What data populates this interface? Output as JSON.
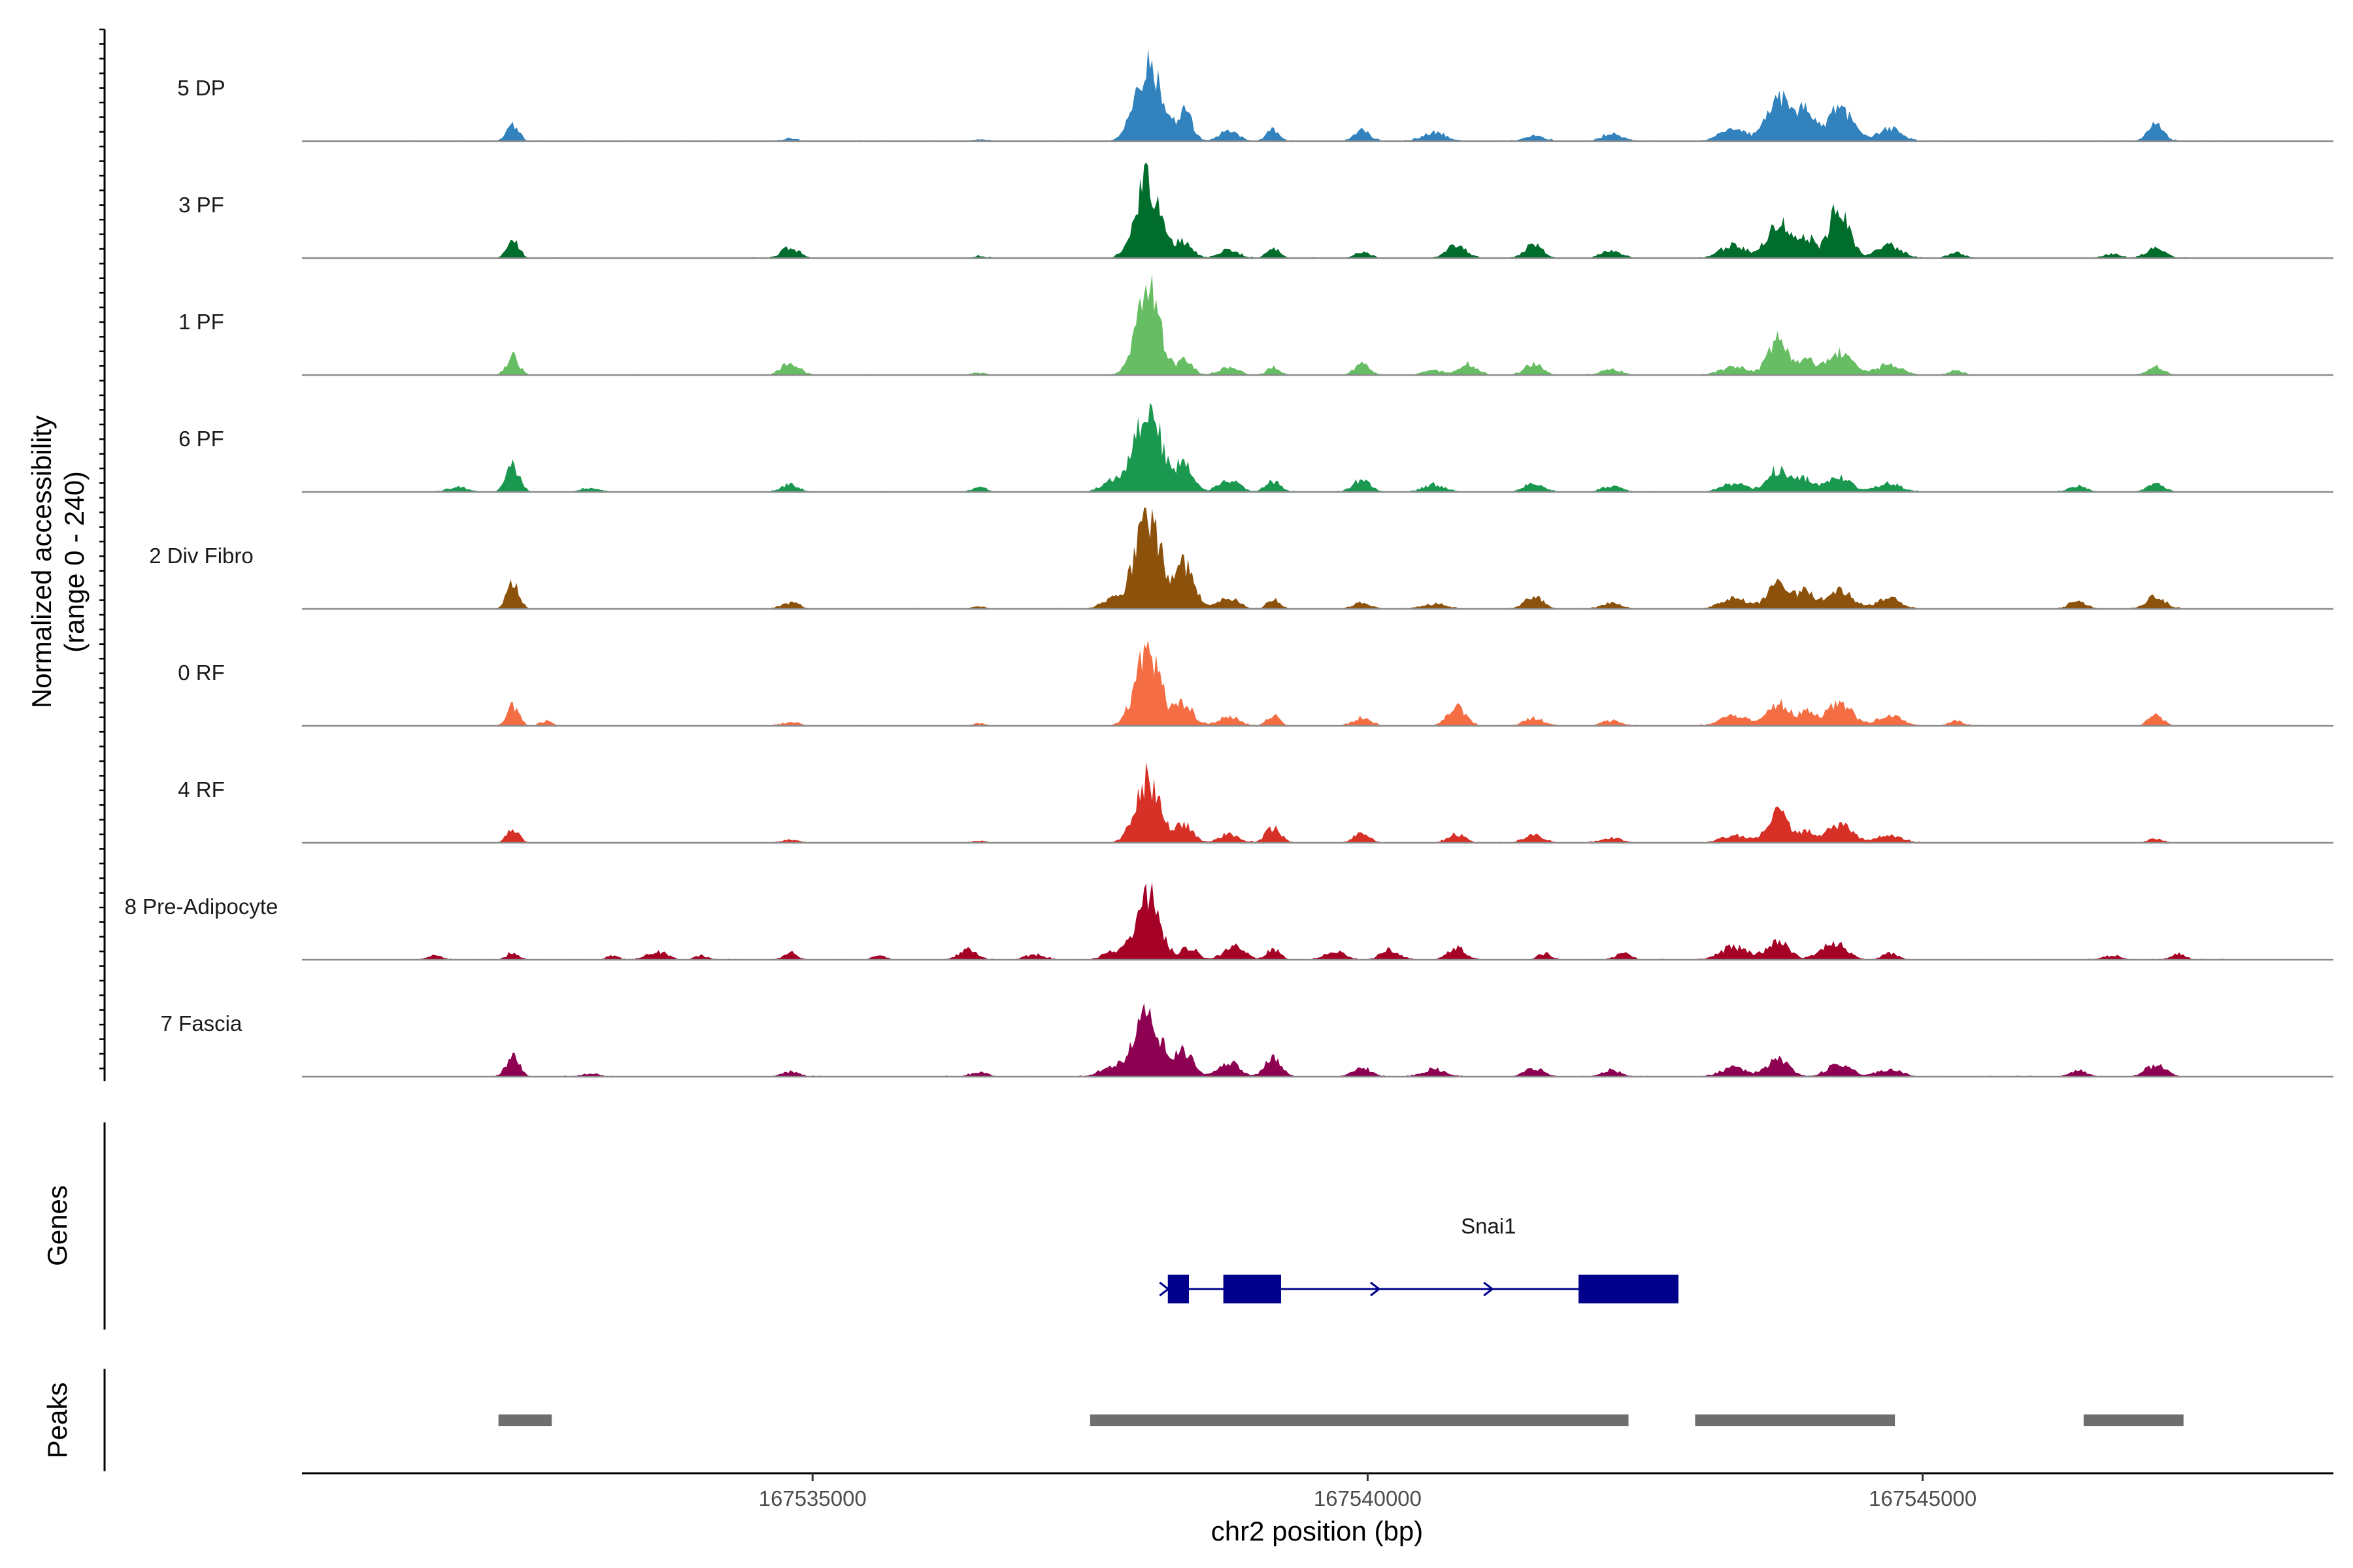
{
  "chart_data": {
    "type": "area",
    "title": "",
    "ylabel": "Normalized accessibility",
    "ylabel_range": "(range 0 - 240)",
    "ylim": [
      0,
      240
    ],
    "xlabel": "chr2 position (bp)",
    "xlim": [
      167530400,
      167548700
    ],
    "x_ticks": [
      167535000,
      167540000,
      167545000
    ],
    "x_tick_labels": [
      "167535000",
      "167540000",
      "167545000"
    ],
    "series": [
      {
        "name": "5 DP",
        "color": "#3182BD",
        "peaks": [
          [
            167532300,
            40,
            55
          ],
          [
            167534800,
            6,
            70
          ],
          [
            167536500,
            4,
            60
          ],
          [
            167538020,
            185,
            110
          ],
          [
            167538350,
            70,
            70
          ],
          [
            167538750,
            22,
            90
          ],
          [
            167539150,
            28,
            55
          ],
          [
            167539950,
            26,
            70
          ],
          [
            167540600,
            20,
            110
          ],
          [
            167541500,
            12,
            90
          ],
          [
            167542200,
            18,
            90
          ],
          [
            167543300,
            30,
            120
          ],
          [
            167543700,
            110,
            95
          ],
          [
            167543950,
            75,
            75
          ],
          [
            167544250,
            80,
            110
          ],
          [
            167544700,
            30,
            110
          ],
          [
            167547100,
            38,
            70
          ]
        ]
      },
      {
        "name": "3 PF",
        "color": "#006D2C",
        "peaks": [
          [
            167532300,
            40,
            55
          ],
          [
            167534800,
            25,
            80
          ],
          [
            167536500,
            5,
            60
          ],
          [
            167538020,
            180,
            110
          ],
          [
            167538350,
            40,
            70
          ],
          [
            167538750,
            18,
            90
          ],
          [
            167539150,
            25,
            55
          ],
          [
            167539950,
            14,
            70
          ],
          [
            167540800,
            30,
            90
          ],
          [
            167541500,
            32,
            80
          ],
          [
            167542200,
            18,
            90
          ],
          [
            167543300,
            30,
            120
          ],
          [
            167543700,
            90,
            95
          ],
          [
            167543950,
            50,
            75
          ],
          [
            167544250,
            125,
            90
          ],
          [
            167544700,
            30,
            110
          ],
          [
            167545300,
            14,
            70
          ],
          [
            167546700,
            10,
            80
          ],
          [
            167547100,
            22,
            90
          ]
        ]
      },
      {
        "name": "1 PF",
        "color": "#66BD63",
        "peaks": [
          [
            167532300,
            45,
            55
          ],
          [
            167534800,
            30,
            80
          ],
          [
            167536500,
            5,
            60
          ],
          [
            167538020,
            225,
            100
          ],
          [
            167538350,
            35,
            70
          ],
          [
            167538750,
            18,
            90
          ],
          [
            167539150,
            18,
            55
          ],
          [
            167539950,
            25,
            70
          ],
          [
            167540600,
            10,
            100
          ],
          [
            167540900,
            28,
            80
          ],
          [
            167541500,
            26,
            80
          ],
          [
            167542200,
            14,
            90
          ],
          [
            167543300,
            20,
            120
          ],
          [
            167543700,
            85,
            90
          ],
          [
            167543950,
            35,
            75
          ],
          [
            167544250,
            55,
            110
          ],
          [
            167544700,
            25,
            110
          ],
          [
            167545300,
            10,
            70
          ],
          [
            167547100,
            20,
            70
          ]
        ]
      },
      {
        "name": "6 PF",
        "color": "#1A9850",
        "peaks": [
          [
            167531800,
            12,
            90
          ],
          [
            167532300,
            60,
            60
          ],
          [
            167533000,
            10,
            80
          ],
          [
            167534800,
            18,
            80
          ],
          [
            167536500,
            10,
            70
          ],
          [
            167537700,
            25,
            100
          ],
          [
            167538020,
            200,
            120
          ],
          [
            167538350,
            60,
            80
          ],
          [
            167538750,
            30,
            90
          ],
          [
            167539150,
            25,
            70
          ],
          [
            167539950,
            30,
            80
          ],
          [
            167540600,
            18,
            100
          ],
          [
            167541500,
            20,
            90
          ],
          [
            167542200,
            14,
            90
          ],
          [
            167543300,
            20,
            120
          ],
          [
            167543700,
            55,
            95
          ],
          [
            167543950,
            30,
            75
          ],
          [
            167544250,
            35,
            110
          ],
          [
            167544700,
            20,
            110
          ],
          [
            167546400,
            14,
            80
          ],
          [
            167547100,
            18,
            80
          ]
        ]
      },
      {
        "name": "2 Div Fibro",
        "color": "#8C510A",
        "peaks": [
          [
            167532300,
            60,
            55
          ],
          [
            167534800,
            15,
            80
          ],
          [
            167536500,
            6,
            60
          ],
          [
            167537700,
            22,
            100
          ],
          [
            167538020,
            240,
            110
          ],
          [
            167538350,
            100,
            90
          ],
          [
            167538750,
            25,
            90
          ],
          [
            167539150,
            25,
            55
          ],
          [
            167539950,
            15,
            80
          ],
          [
            167540600,
            12,
            100
          ],
          [
            167541500,
            30,
            80
          ],
          [
            167542200,
            14,
            90
          ],
          [
            167543300,
            25,
            120
          ],
          [
            167543700,
            55,
            100
          ],
          [
            167543950,
            40,
            75
          ],
          [
            167544250,
            45,
            110
          ],
          [
            167544700,
            25,
            110
          ],
          [
            167546400,
            18,
            80
          ],
          [
            167547100,
            28,
            90
          ]
        ]
      },
      {
        "name": "0 RF",
        "color": "#F46D43",
        "peaks": [
          [
            167532300,
            45,
            55
          ],
          [
            167532600,
            12,
            50
          ],
          [
            167534800,
            8,
            80
          ],
          [
            167536500,
            6,
            60
          ],
          [
            167538020,
            175,
            110
          ],
          [
            167538350,
            50,
            80
          ],
          [
            167538750,
            22,
            90
          ],
          [
            167539150,
            26,
            55
          ],
          [
            167539950,
            20,
            80
          ],
          [
            167540800,
            45,
            80
          ],
          [
            167541500,
            18,
            90
          ],
          [
            167542200,
            12,
            90
          ],
          [
            167543300,
            25,
            120
          ],
          [
            167543700,
            50,
            95
          ],
          [
            167543950,
            30,
            75
          ],
          [
            167544250,
            55,
            110
          ],
          [
            167544700,
            25,
            110
          ],
          [
            167545300,
            12,
            70
          ],
          [
            167547100,
            22,
            70
          ]
        ]
      },
      {
        "name": "4 RF",
        "color": "#D73027",
        "peaks": [
          [
            167532300,
            35,
            55
          ],
          [
            167534800,
            8,
            80
          ],
          [
            167536500,
            5,
            60
          ],
          [
            167538020,
            150,
            110
          ],
          [
            167538350,
            40,
            80
          ],
          [
            167538750,
            20,
            90
          ],
          [
            167539150,
            35,
            70
          ],
          [
            167539950,
            22,
            70
          ],
          [
            167540800,
            20,
            80
          ],
          [
            167541500,
            18,
            90
          ],
          [
            167542200,
            12,
            90
          ],
          [
            167543300,
            18,
            120
          ],
          [
            167543700,
            70,
            95
          ],
          [
            167543950,
            25,
            75
          ],
          [
            167544250,
            45,
            110
          ],
          [
            167544700,
            18,
            110
          ],
          [
            167547100,
            10,
            70
          ]
        ]
      },
      {
        "name": "8 Pre-Adipocyte",
        "color": "#A50026",
        "peaks": [
          [
            167531600,
            12,
            60
          ],
          [
            167532300,
            15,
            60
          ],
          [
            167533200,
            10,
            50
          ],
          [
            167533600,
            20,
            90
          ],
          [
            167534000,
            10,
            60
          ],
          [
            167534800,
            20,
            60
          ],
          [
            167535600,
            10,
            60
          ],
          [
            167536400,
            25,
            80
          ],
          [
            167537000,
            12,
            90
          ],
          [
            167537700,
            18,
            90
          ],
          [
            167538020,
            150,
            110
          ],
          [
            167538400,
            30,
            70
          ],
          [
            167538800,
            35,
            90
          ],
          [
            167539150,
            25,
            60
          ],
          [
            167539700,
            20,
            90
          ],
          [
            167540200,
            25,
            80
          ],
          [
            167540800,
            28,
            80
          ],
          [
            167541600,
            15,
            60
          ],
          [
            167542300,
            14,
            70
          ],
          [
            167543300,
            30,
            120
          ],
          [
            167543700,
            45,
            100
          ],
          [
            167544200,
            40,
            110
          ],
          [
            167544700,
            15,
            70
          ],
          [
            167546700,
            10,
            80
          ],
          [
            167547300,
            14,
            60
          ]
        ]
      },
      {
        "name": "7 Fascia",
        "color": "#8E0152",
        "peaks": [
          [
            167532300,
            50,
            60
          ],
          [
            167533000,
            8,
            80
          ],
          [
            167534800,
            12,
            80
          ],
          [
            167536500,
            10,
            80
          ],
          [
            167537700,
            25,
            110
          ],
          [
            167538020,
            140,
            120
          ],
          [
            167538350,
            60,
            80
          ],
          [
            167538750,
            35,
            90
          ],
          [
            167539150,
            50,
            70
          ],
          [
            167539950,
            22,
            80
          ],
          [
            167540600,
            18,
            100
          ],
          [
            167541500,
            20,
            90
          ],
          [
            167542200,
            14,
            90
          ],
          [
            167543300,
            22,
            120
          ],
          [
            167543700,
            40,
            100
          ],
          [
            167544250,
            30,
            110
          ],
          [
            167544700,
            18,
            110
          ],
          [
            167546400,
            14,
            80
          ],
          [
            167547100,
            28,
            90
          ]
        ]
      }
    ],
    "genes_track": {
      "label": "Genes",
      "gene_name": "Snai1",
      "strand": "+",
      "tx_start": 167538200,
      "tx_end": 167542800,
      "exons": [
        [
          167538200,
          167538390
        ],
        [
          167538700,
          167539220
        ],
        [
          167541900,
          167542800
        ]
      ],
      "arrows_at": [
        167538180,
        167540080,
        167541100
      ]
    },
    "peaks_track": {
      "label": "Peaks",
      "color": "#6E6E6E",
      "regions": [
        [
          167532170,
          167532650
        ],
        [
          167537500,
          167542350
        ],
        [
          167542950,
          167544750
        ],
        [
          167546450,
          167547350
        ]
      ]
    }
  }
}
